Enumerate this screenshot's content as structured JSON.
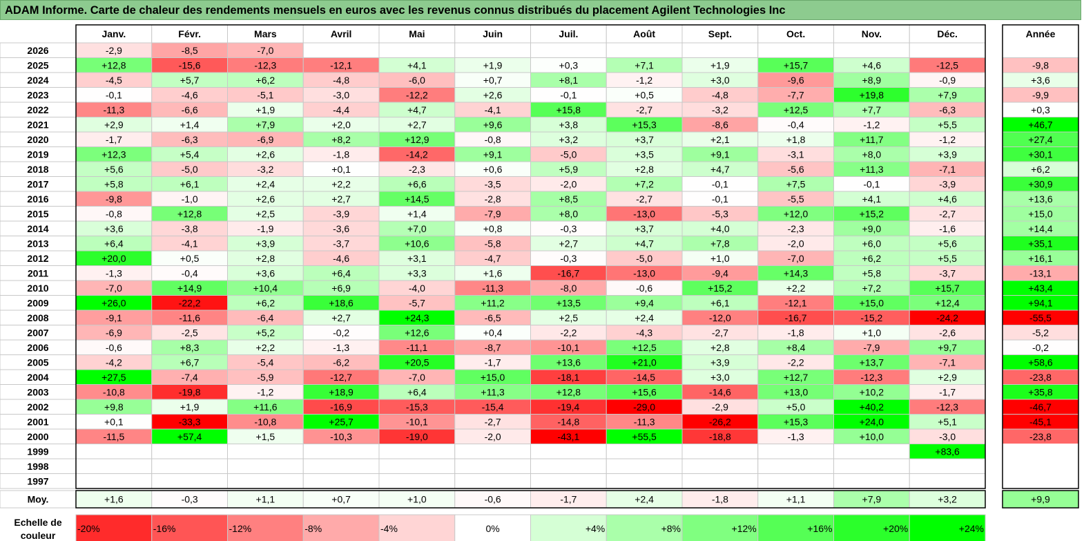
{
  "title": "ADAM Informe. Carte de chaleur des rendements mensuels en euros avec les revenus connus distribués du placement Agilent Technologies Inc",
  "chart_data": {
    "type": "heatmap",
    "title": "ADAM Informe. Carte de chaleur des rendements mensuels en euros avec les revenus connus distribués du placement Agilent Technologies Inc",
    "columns": [
      "Janv.",
      "Févr.",
      "Mars",
      "Avril",
      "Mai",
      "Juin",
      "Juil.",
      "Août",
      "Sept.",
      "Oct.",
      "Nov.",
      "Déc."
    ],
    "year_column_label": "Année",
    "average_row_label": "Moy.",
    "rows": [
      {
        "year": "2026",
        "values": [
          "-2,9",
          "-8,5",
          "-7,0",
          "",
          "",
          "",
          "",
          "",
          "",
          "",
          "",
          ""
        ],
        "annual": ""
      },
      {
        "year": "2025",
        "values": [
          "+12,8",
          "-15,6",
          "-12,3",
          "-12,1",
          "+4,1",
          "+1,9",
          "+0,3",
          "+7,1",
          "+1,9",
          "+15,7",
          "+4,6",
          "-12,5"
        ],
        "annual": "-9,8"
      },
      {
        "year": "2024",
        "values": [
          "-4,5",
          "+5,7",
          "+6,2",
          "-4,8",
          "-6,0",
          "+0,7",
          "+8,1",
          "-1,2",
          "+3,0",
          "-9,6",
          "+8,9",
          "-0,9"
        ],
        "annual": "+3,6"
      },
      {
        "year": "2023",
        "values": [
          "-0,1",
          "-4,6",
          "-5,1",
          "-3,0",
          "-12,2",
          "+2,6",
          "-0,1",
          "+0,5",
          "-4,8",
          "-7,7",
          "+19,8",
          "+7,9"
        ],
        "annual": "-9,9"
      },
      {
        "year": "2022",
        "values": [
          "-11,3",
          "-6,6",
          "+1,9",
          "-4,4",
          "+4,7",
          "-4,1",
          "+15,8",
          "-2,7",
          "-3,2",
          "+12,5",
          "+7,7",
          "-6,3"
        ],
        "annual": "+0,3"
      },
      {
        "year": "2021",
        "values": [
          "+2,9",
          "+1,4",
          "+7,9",
          "+2,0",
          "+2,7",
          "+9,6",
          "+3,8",
          "+15,3",
          "-8,6",
          "-0,4",
          "-1,2",
          "+5,5"
        ],
        "annual": "+46,7"
      },
      {
        "year": "2020",
        "values": [
          "-1,7",
          "-6,3",
          "-6,9",
          "+8,2",
          "+12,9",
          "-0,8",
          "+3,2",
          "+3,7",
          "+2,1",
          "+1,8",
          "+11,7",
          "-1,2"
        ],
        "annual": "+27,4"
      },
      {
        "year": "2019",
        "values": [
          "+12,3",
          "+5,4",
          "+2,6",
          "-1,8",
          "-14,2",
          "+9,1",
          "-5,0",
          "+3,5",
          "+9,1",
          "-3,1",
          "+8,0",
          "+3,9"
        ],
        "annual": "+30,1"
      },
      {
        "year": "2018",
        "values": [
          "+5,6",
          "-5,0",
          "-3,2",
          "+0,1",
          "-2,3",
          "+0,6",
          "+5,9",
          "+2,8",
          "+4,7",
          "-5,6",
          "+11,3",
          "-7,1"
        ],
        "annual": "+6,2"
      },
      {
        "year": "2017",
        "values": [
          "+5,8",
          "+6,1",
          "+2,4",
          "+2,2",
          "+6,6",
          "-3,5",
          "-2,0",
          "+7,2",
          "-0,1",
          "+7,5",
          "-0,1",
          "-3,9"
        ],
        "annual": "+30,9"
      },
      {
        "year": "2016",
        "values": [
          "-9,8",
          "-1,0",
          "+2,6",
          "+2,7",
          "+14,5",
          "-2,8",
          "+8,5",
          "-2,7",
          "-0,1",
          "-5,5",
          "+4,1",
          "+4,6"
        ],
        "annual": "+13,6"
      },
      {
        "year": "2015",
        "values": [
          "-0,8",
          "+12,8",
          "+2,5",
          "-3,9",
          "+1,4",
          "-7,9",
          "+8,0",
          "-13,0",
          "-5,3",
          "+12,0",
          "+15,2",
          "-2,7"
        ],
        "annual": "+15,0"
      },
      {
        "year": "2014",
        "values": [
          "+3,6",
          "-3,8",
          "-1,9",
          "-3,6",
          "+7,0",
          "+0,8",
          "-0,3",
          "+3,7",
          "+4,0",
          "-2,3",
          "+9,0",
          "-1,6"
        ],
        "annual": "+14,4"
      },
      {
        "year": "2013",
        "values": [
          "+6,4",
          "-4,1",
          "+3,9",
          "-3,7",
          "+10,6",
          "-5,8",
          "+2,7",
          "+4,7",
          "+7,8",
          "-2,0",
          "+6,0",
          "+5,6"
        ],
        "annual": "+35,1"
      },
      {
        "year": "2012",
        "values": [
          "+20,0",
          "+0,5",
          "+2,8",
          "-4,6",
          "+3,1",
          "-4,7",
          "-0,3",
          "-5,0",
          "+1,0",
          "-7,0",
          "+6,2",
          "+5,5"
        ],
        "annual": "+16,1"
      },
      {
        "year": "2011",
        "values": [
          "-1,3",
          "-0,4",
          "+3,6",
          "+6,4",
          "+3,3",
          "+1,6",
          "-16,7",
          "-13,0",
          "-9,4",
          "+14,3",
          "+5,8",
          "-3,7"
        ],
        "annual": "-13,1"
      },
      {
        "year": "2010",
        "values": [
          "-7,0",
          "+14,9",
          "+10,4",
          "+6,9",
          "-4,0",
          "-11,3",
          "-8,0",
          "-0,6",
          "+15,2",
          "+2,2",
          "+7,2",
          "+15,7"
        ],
        "annual": "+43,4"
      },
      {
        "year": "2009",
        "values": [
          "+26,0",
          "-22,2",
          "+6,2",
          "+18,6",
          "-5,7",
          "+11,2",
          "+13,5",
          "+9,4",
          "+6,1",
          "-12,1",
          "+15,0",
          "+12,4"
        ],
        "annual": "+94,1"
      },
      {
        "year": "2008",
        "values": [
          "-9,1",
          "-11,6",
          "-6,4",
          "+2,7",
          "+24,3",
          "-6,5",
          "+2,5",
          "+2,4",
          "-12,0",
          "-16,7",
          "-15,2",
          "-24,2"
        ],
        "annual": "-55,5"
      },
      {
        "year": "2007",
        "values": [
          "-6,9",
          "-2,5",
          "+5,2",
          "-0,2",
          "+12,6",
          "+0,4",
          "-2,2",
          "-4,3",
          "-2,7",
          "-1,8",
          "+1,0",
          "-2,6"
        ],
        "annual": "-5,2"
      },
      {
        "year": "2006",
        "values": [
          "-0,6",
          "+8,3",
          "+2,2",
          "-1,3",
          "-11,1",
          "-8,7",
          "-10,1",
          "+12,5",
          "+2,8",
          "+8,4",
          "-7,9",
          "+9,7"
        ],
        "annual": "-0,2"
      },
      {
        "year": "2005",
        "values": [
          "-4,2",
          "+6,7",
          "-5,4",
          "-6,2",
          "+20,5",
          "-1,7",
          "+13,6",
          "+21,0",
          "+3,9",
          "-2,2",
          "+13,7",
          "-7,1"
        ],
        "annual": "+58,6"
      },
      {
        "year": "2004",
        "values": [
          "+27,5",
          "-7,4",
          "-5,9",
          "-12,7",
          "-7,0",
          "+15,0",
          "-18,1",
          "-14,5",
          "+3,0",
          "+12,7",
          "-12,3",
          "+2,9"
        ],
        "annual": "-23,8"
      },
      {
        "year": "2003",
        "values": [
          "-10,8",
          "-19,8",
          "-1,2",
          "+18,9",
          "+6,4",
          "+11,3",
          "+12,8",
          "+15,6",
          "-14,6",
          "+13,0",
          "+10,2",
          "-1,7"
        ],
        "annual": "+35,8"
      },
      {
        "year": "2002",
        "values": [
          "+9,8",
          "+1,9",
          "+11,6",
          "-16,9",
          "-15,3",
          "-15,4",
          "-19,4",
          "-29,0",
          "-2,9",
          "+5,0",
          "+40,2",
          "-12,3"
        ],
        "annual": "-46,7"
      },
      {
        "year": "2001",
        "values": [
          "+0,1",
          "-33,3",
          "-10,8",
          "+25,7",
          "-10,1",
          "-2,7",
          "-14,8",
          "-11,3",
          "-26,2",
          "+15,3",
          "+24,0",
          "+5,1"
        ],
        "annual": "-45,1"
      },
      {
        "year": "2000",
        "values": [
          "-11,5",
          "+57,4",
          "+1,5",
          "-10,3",
          "-19,0",
          "-2,0",
          "-43,1",
          "+55,5",
          "-18,8",
          "-1,3",
          "+10,0",
          "-3,0"
        ],
        "annual": "-23,8"
      },
      {
        "year": "1999",
        "values": [
          "",
          "",
          "",
          "",
          "",
          "",
          "",
          "",
          "",
          "",
          "",
          "+83,6"
        ],
        "annual": ""
      },
      {
        "year": "1998",
        "values": [
          "",
          "",
          "",
          "",
          "",
          "",
          "",
          "",
          "",
          "",
          "",
          ""
        ],
        "annual": ""
      },
      {
        "year": "1997",
        "values": [
          "",
          "",
          "",
          "",
          "",
          "",
          "",
          "",
          "",
          "",
          "",
          ""
        ],
        "annual": ""
      }
    ],
    "averages": [
      "+1,6",
      "-0,3",
      "+1,1",
      "+0,7",
      "+1,0",
      "-0,6",
      "-1,7",
      "+2,4",
      "-1,8",
      "+1,1",
      "+7,9",
      "+3,2"
    ],
    "annual_average": "+9,9",
    "scale_label_line1": "Echelle de",
    "scale_label_line2": "couleur",
    "scale": [
      "-20%",
      "-16%",
      "-12%",
      "-8%",
      "-4%",
      "0%",
      "+4%",
      "+8%",
      "+12%",
      "+16%",
      "+20%",
      "+24%"
    ],
    "scale_values": [
      -20,
      -16,
      -12,
      -8,
      -4,
      0,
      4,
      8,
      12,
      16,
      20,
      24
    ],
    "colors": {
      "negative_max": "#ff0000",
      "neutral": "#ffffff",
      "positive_max": "#00ff00",
      "title_bg": "#8dcb8f",
      "grid": "#c8c8c8",
      "border": "#000000"
    }
  }
}
